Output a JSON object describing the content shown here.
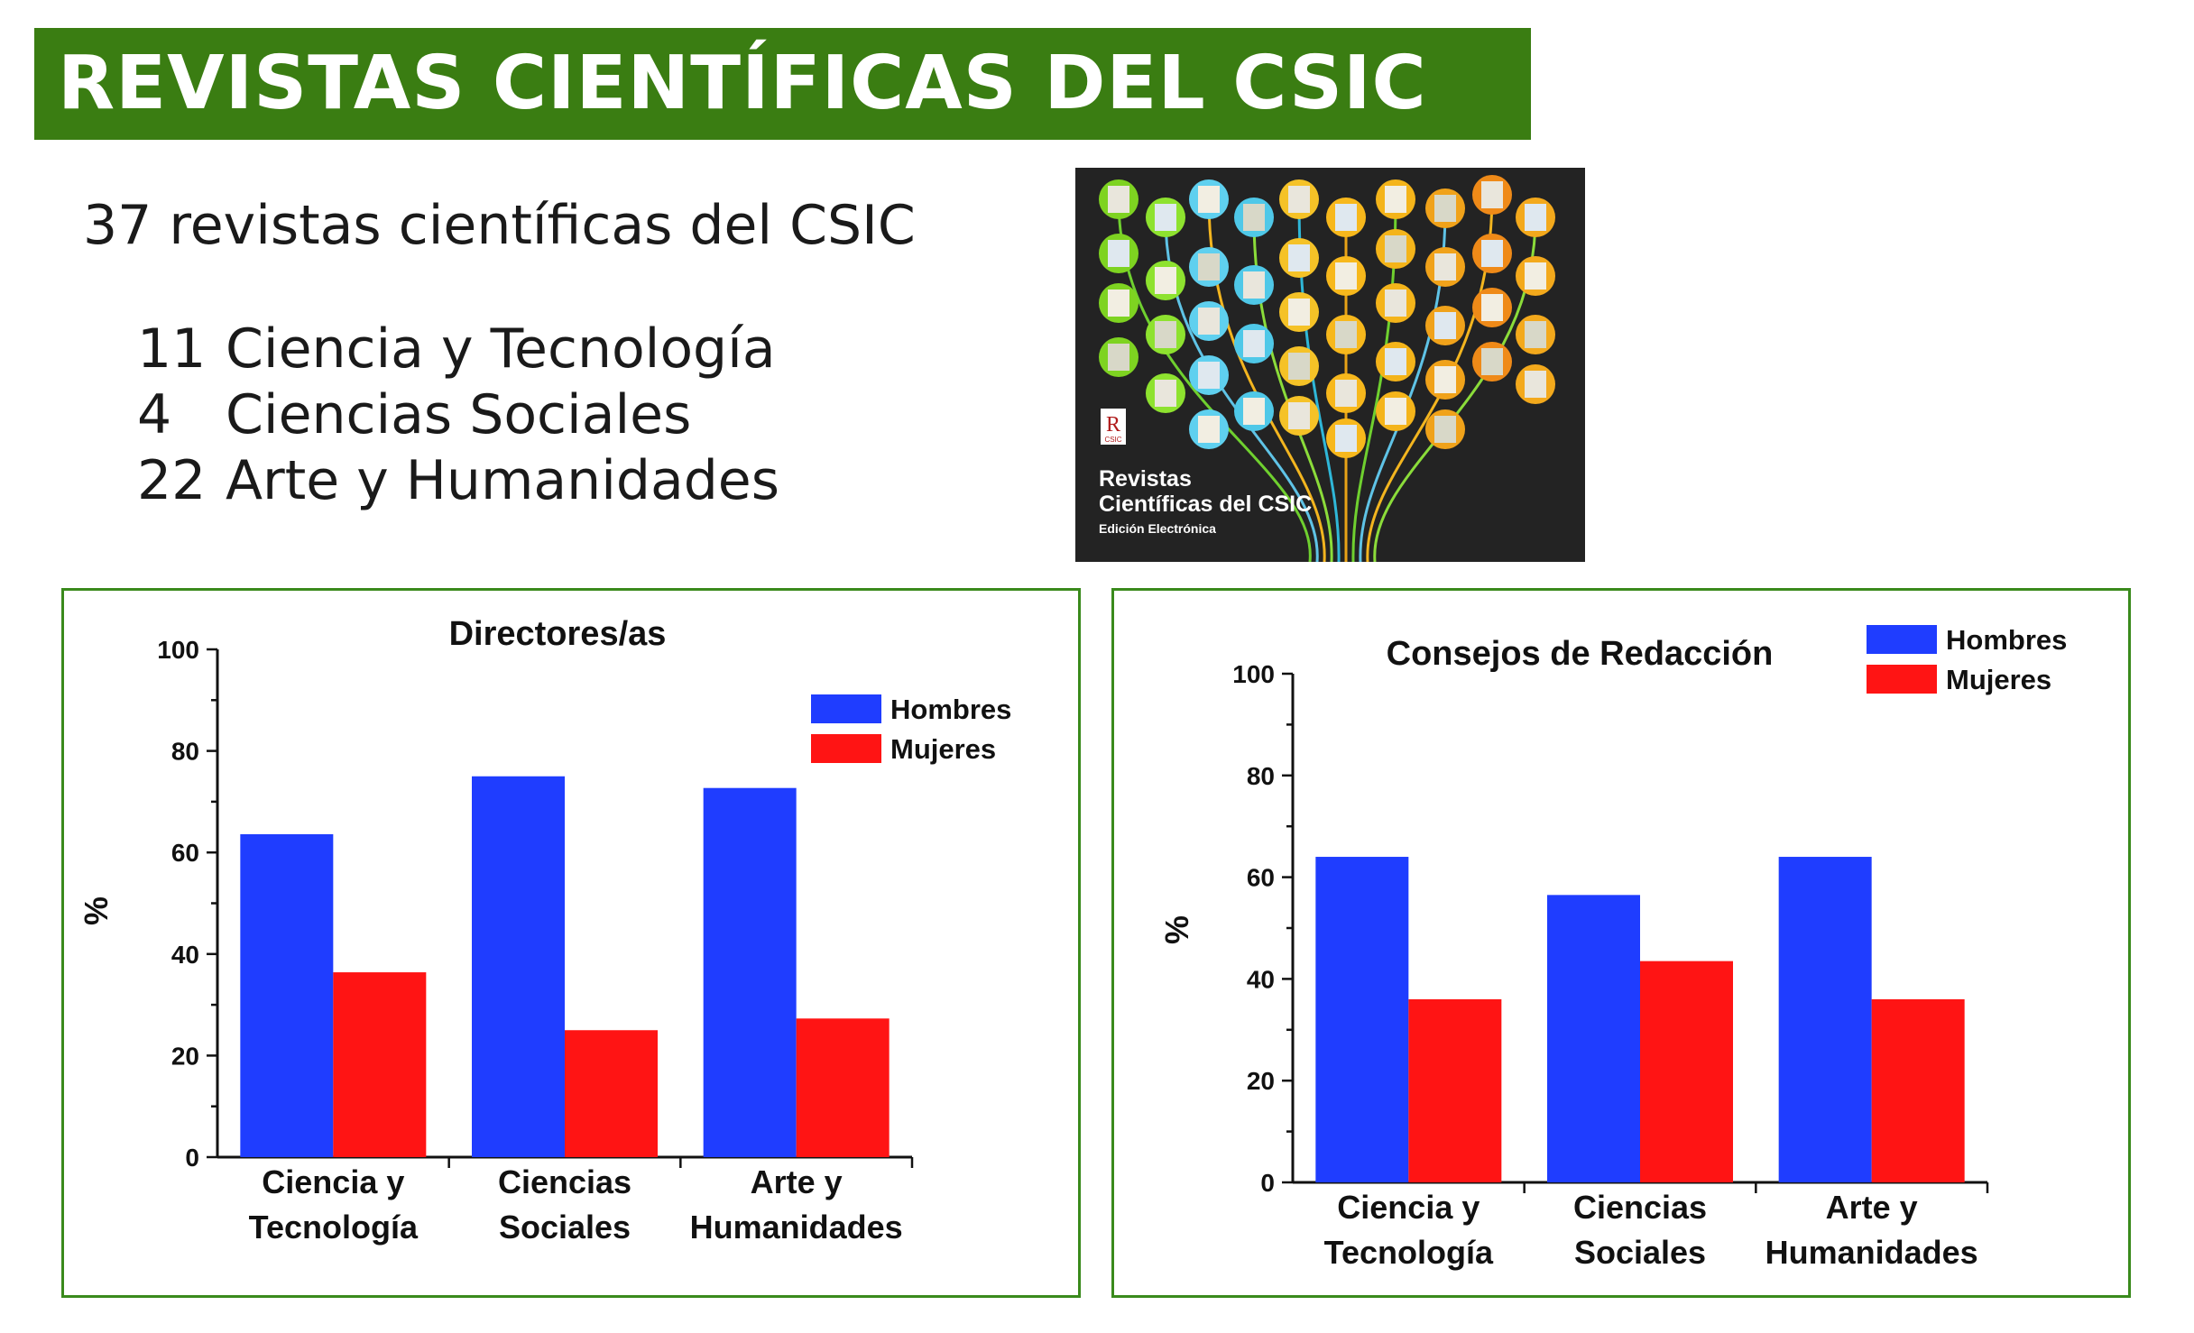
{
  "header": {
    "title": "REVISTAS CIENTÍFICAS DEL CSIC"
  },
  "summary": {
    "total_text": "37 revistas científicas del CSIC",
    "breakdown": [
      {
        "count": "11",
        "label": "Ciencia y Tecnología"
      },
      {
        "count": "4",
        "label": "Ciencias Sociales"
      },
      {
        "count": "22",
        "label": "Arte y Humanidades"
      }
    ]
  },
  "cover": {
    "logo_letter": "R",
    "logo_caption": "CSIC",
    "title_line1": "Revistas",
    "title_line2": "Científicas del CSIC",
    "subtitle": "Edición Electrónica"
  },
  "colors": {
    "banner": "#3a7d12",
    "panel_border": "#3a8a1c",
    "hombres": "#1f3dff",
    "mujeres": "#ff1414"
  },
  "chart_data": [
    {
      "type": "bar",
      "title": "Directores/as",
      "ylabel": "%",
      "xlabel": "",
      "ylim": [
        0,
        100
      ],
      "yticks": [
        0,
        20,
        40,
        60,
        80,
        100
      ],
      "categories": [
        [
          "Ciencia y",
          "Tecnología"
        ],
        [
          "Ciencias",
          "Sociales"
        ],
        [
          "Arte y",
          "Humanidades"
        ]
      ],
      "series": [
        {
          "name": "Hombres",
          "color": "#1f3dff",
          "values": [
            63.6,
            75,
            72.7
          ]
        },
        {
          "name": "Mujeres",
          "color": "#ff1414",
          "values": [
            36.4,
            25,
            27.3
          ]
        }
      ],
      "legend": "top-right",
      "grid": false
    },
    {
      "type": "bar",
      "title": "Consejos de Redacción",
      "ylabel": "%",
      "xlabel": "",
      "ylim": [
        0,
        100
      ],
      "yticks": [
        0,
        20,
        40,
        60,
        80,
        100
      ],
      "categories": [
        [
          "Ciencia y",
          "Tecnología"
        ],
        [
          "Ciencias",
          "Sociales"
        ],
        [
          "Arte y",
          "Humanidades"
        ]
      ],
      "series": [
        {
          "name": "Hombres",
          "color": "#1f3dff",
          "values": [
            64,
            56.5,
            64
          ]
        },
        {
          "name": "Mujeres",
          "color": "#ff1414",
          "values": [
            36,
            43.5,
            36
          ]
        }
      ],
      "legend": "top-right",
      "grid": false
    }
  ]
}
